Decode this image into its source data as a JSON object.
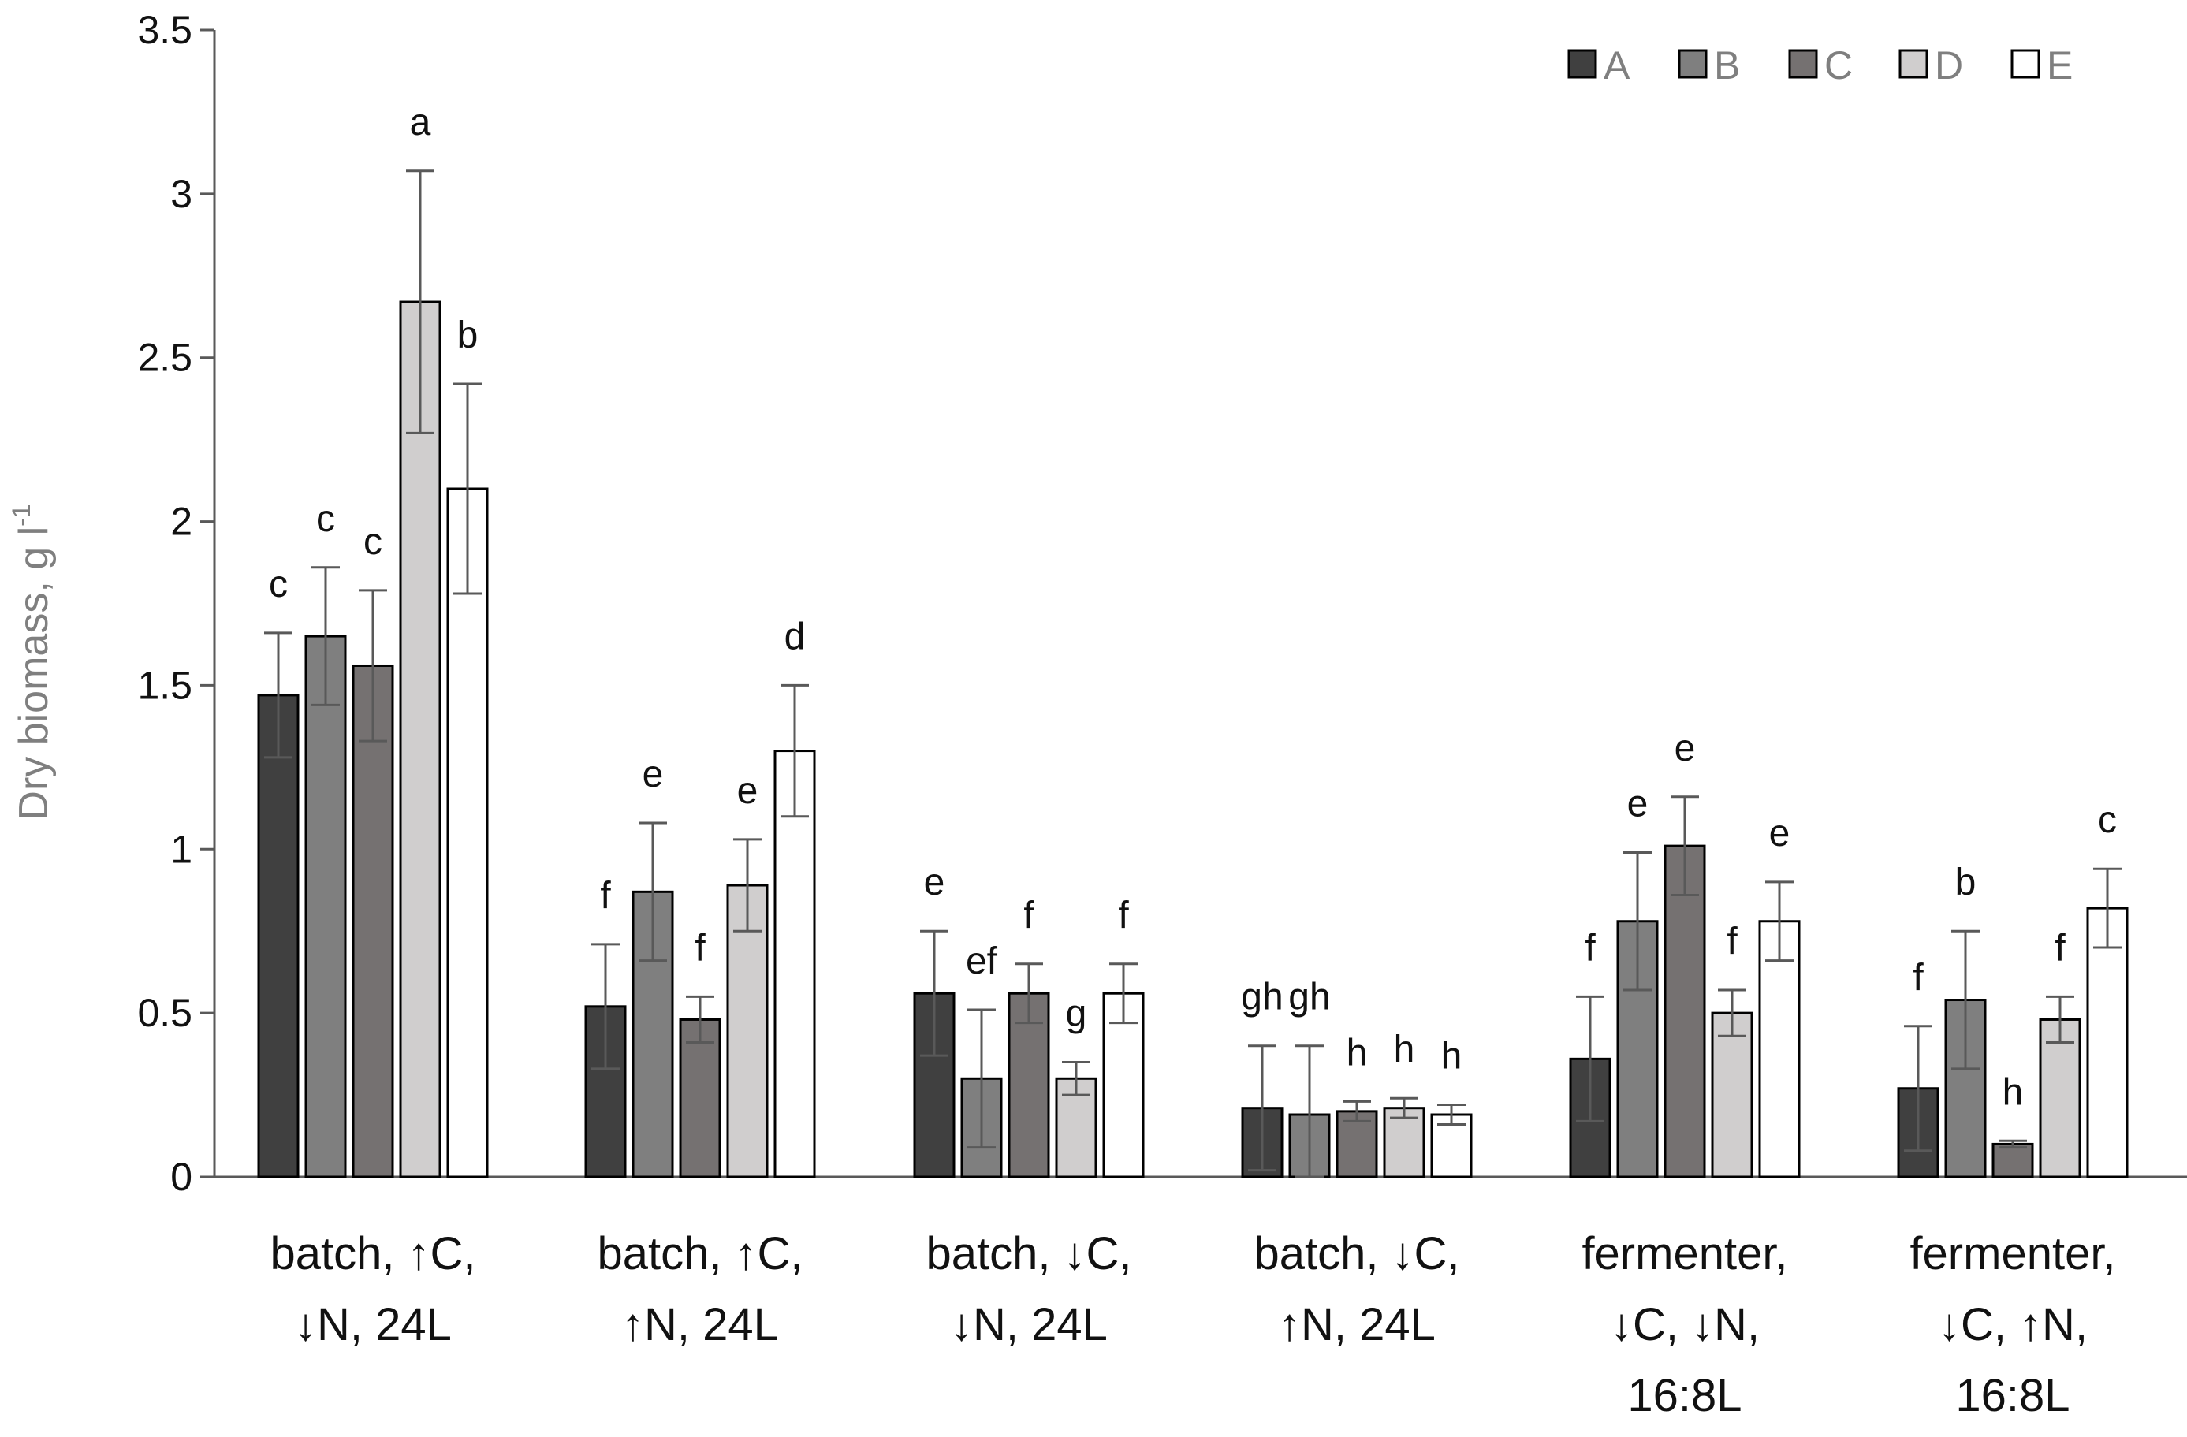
{
  "chart_data": {
    "type": "bar",
    "title": "",
    "xlabel": "",
    "ylabel": "Dry biomass, g l",
    "ylabel_superscript": "-1",
    "ylim": [
      0,
      3.5
    ],
    "yticks": [
      0,
      0.5,
      1,
      1.5,
      2,
      2.5,
      3,
      3.5
    ],
    "ytick_labels": [
      "0",
      "0.5",
      "1",
      "1.5",
      "2",
      "2.5",
      "3",
      "3.5"
    ],
    "grid": false,
    "legend_position": "top-right",
    "categories": [
      [
        "batch, ↑C,",
        "↓N, 24L"
      ],
      [
        "batch, ↑C,",
        "↑N, 24L"
      ],
      [
        "batch, ↓C,",
        "↓N, 24L"
      ],
      [
        "batch, ↓C,",
        "↑N, 24L"
      ],
      [
        "fermenter,",
        "↓C, ↓N,",
        "16:8L"
      ],
      [
        "fermenter,",
        "↓C, ↑N,",
        "16:8L"
      ]
    ],
    "series": [
      {
        "name": "A",
        "color": "#404040",
        "values": [
          1.47,
          0.52,
          0.56,
          0.21,
          0.36,
          0.27
        ],
        "errors": [
          0.19,
          0.19,
          0.19,
          0.19,
          0.19,
          0.19
        ],
        "letters": [
          "c",
          "f",
          "e",
          "gh",
          "f",
          "f"
        ]
      },
      {
        "name": "B",
        "color": "#7f7f7f",
        "values": [
          1.65,
          0.87,
          0.3,
          0.19,
          0.78,
          0.54
        ],
        "errors": [
          0.21,
          0.21,
          0.21,
          0.21,
          0.21,
          0.21
        ],
        "letters": [
          "c",
          "e",
          "ef",
          "gh",
          "e",
          "b"
        ]
      },
      {
        "name": "C",
        "color": "#757171",
        "values": [
          1.56,
          0.48,
          0.56,
          0.2,
          1.01,
          0.1
        ],
        "errors": [
          0.23,
          0.07,
          0.09,
          0.03,
          0.15,
          0.01
        ],
        "letters": [
          "c",
          "f",
          "f",
          "h",
          "e",
          "h"
        ]
      },
      {
        "name": "D",
        "color": "#d0cece",
        "values": [
          2.67,
          0.89,
          0.3,
          0.21,
          0.5,
          0.48
        ],
        "errors": [
          0.4,
          0.14,
          0.05,
          0.03,
          0.07,
          0.07
        ],
        "letters": [
          "a",
          "e",
          "g",
          "h",
          "f",
          "f"
        ]
      },
      {
        "name": "E",
        "color": "#ffffff",
        "values": [
          2.1,
          1.3,
          0.56,
          0.19,
          0.78,
          0.82
        ],
        "errors": [
          0.32,
          0.2,
          0.09,
          0.03,
          0.12,
          0.12
        ],
        "letters": [
          "b",
          "d",
          "f",
          "h",
          "e",
          "c"
        ]
      }
    ]
  }
}
